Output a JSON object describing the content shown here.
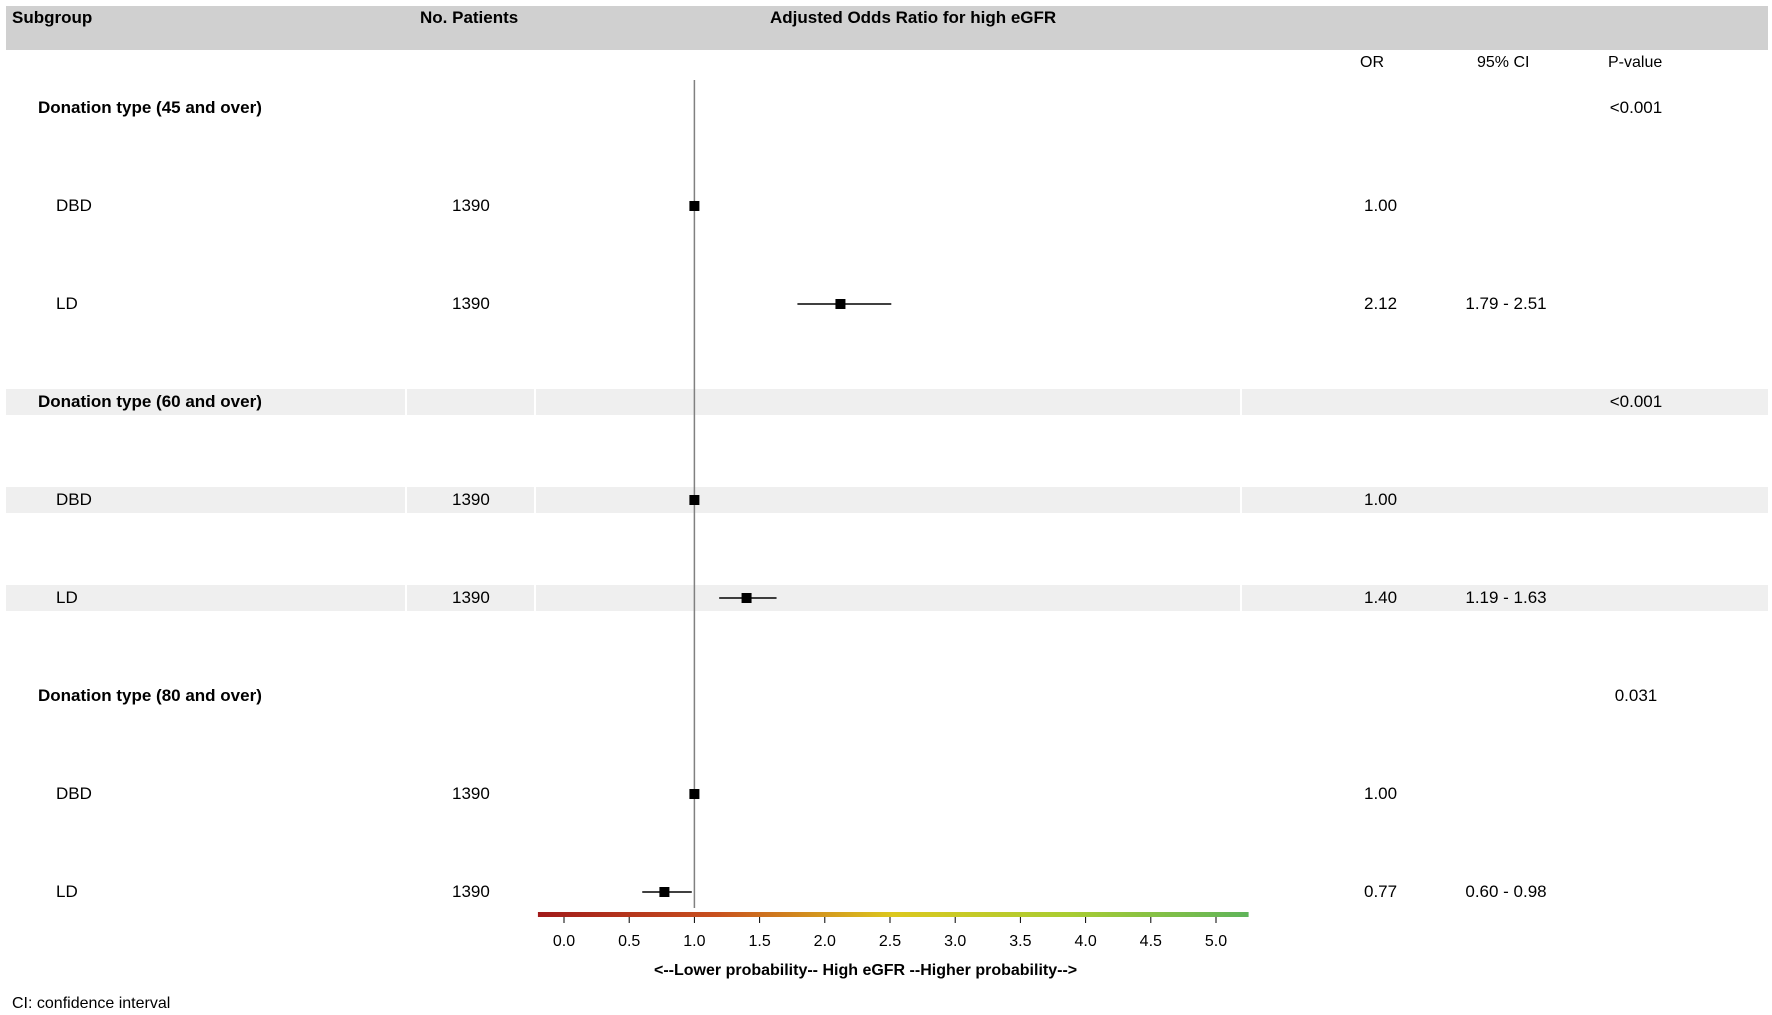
{
  "headers": {
    "subgroup": "Subgroup",
    "patients": "No. Patients",
    "plot_title": "Adjusted Odds Ratio for high eGFR"
  },
  "columns": {
    "or": "OR",
    "ci": "95% CI",
    "pvalue": "P-value"
  },
  "footnote": "CI: confidence interval",
  "colors": {
    "header_band": "#d0d0d0",
    "row_band": "#efefef",
    "marker": "#000000",
    "reference_line": "#808080",
    "gradient": [
      "#a11a1a",
      "#c8501e",
      "#dcc81e",
      "#a8cc32",
      "#5fb45a"
    ]
  },
  "chart_data": {
    "type": "forest",
    "xlabel": "<--Lower probability--  High eGFR  --Higher probability-->",
    "xlim": [
      -0.2,
      5.25
    ],
    "xticks": [
      "0.0",
      "0.5",
      "1.0",
      "1.5",
      "2.0",
      "2.5",
      "3.0",
      "3.5",
      "4.0",
      "4.5",
      "5.0"
    ],
    "reference_line": 1.0,
    "grid": false,
    "rows": [
      {
        "kind": "group",
        "label": "Donation type (45 and over)",
        "pvalue": "<0.001",
        "band": false
      },
      {
        "kind": "item",
        "label": "DBD",
        "n": "1390",
        "or": 1.0,
        "or_text": "1.00",
        "ci": null,
        "ci_text": "",
        "band": false
      },
      {
        "kind": "item",
        "label": "LD",
        "n": "1390",
        "or": 2.12,
        "or_text": "2.12",
        "ci": [
          1.79,
          2.51
        ],
        "ci_text": "1.79 - 2.51",
        "band": false
      },
      {
        "kind": "group",
        "label": "Donation type (60 and over)",
        "pvalue": "<0.001",
        "band": true
      },
      {
        "kind": "item",
        "label": "DBD",
        "n": "1390",
        "or": 1.0,
        "or_text": "1.00",
        "ci": null,
        "ci_text": "",
        "band": true
      },
      {
        "kind": "item",
        "label": "LD",
        "n": "1390",
        "or": 1.4,
        "or_text": "1.40",
        "ci": [
          1.19,
          1.63
        ],
        "ci_text": "1.19 - 1.63",
        "band": true
      },
      {
        "kind": "group",
        "label": "Donation type (80 and over)",
        "pvalue": "0.031",
        "band": false
      },
      {
        "kind": "item",
        "label": "DBD",
        "n": "1390",
        "or": 1.0,
        "or_text": "1.00",
        "ci": null,
        "ci_text": "",
        "band": false
      },
      {
        "kind": "item",
        "label": "LD",
        "n": "1390",
        "or": 0.77,
        "or_text": "0.77",
        "ci": [
          0.6,
          0.98
        ],
        "ci_text": "0.60 - 0.98",
        "band": false
      }
    ]
  }
}
